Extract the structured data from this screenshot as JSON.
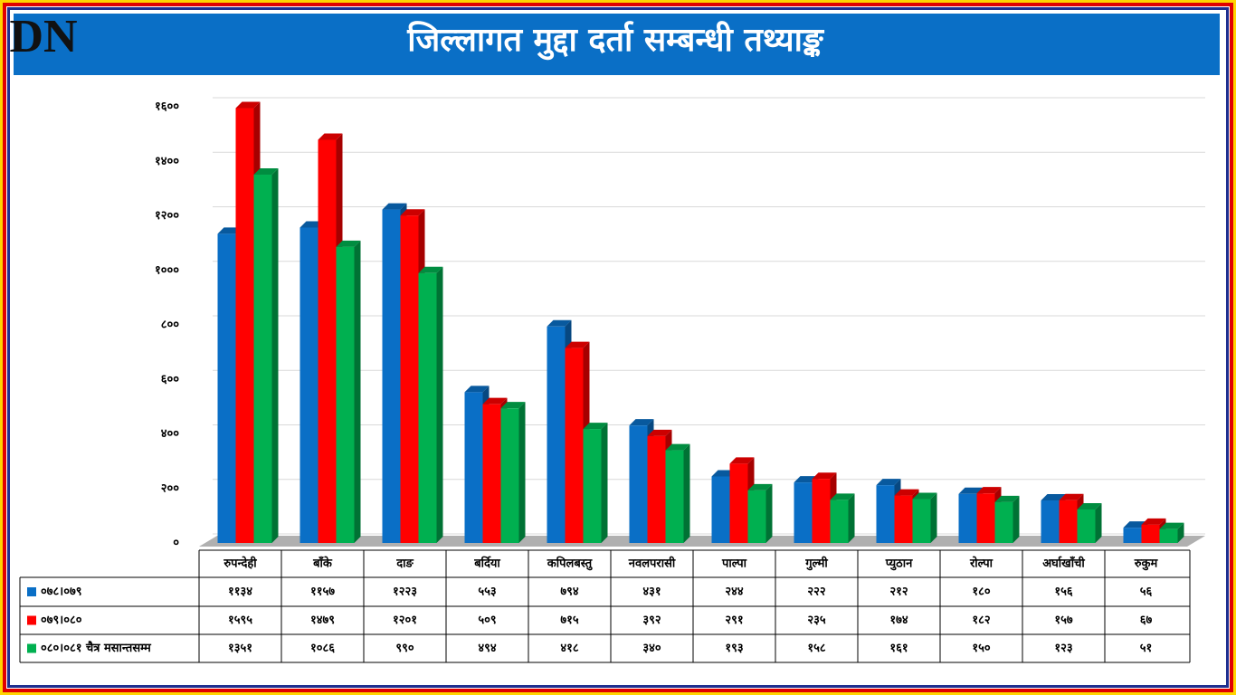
{
  "logo": "DN",
  "chart_data": {
    "type": "bar3d",
    "title": "जिल्लागत मुद्दा दर्ता सम्बन्धी तथ्याङ्क",
    "categories": [
      "रुपन्देही",
      "बाँके",
      "दाङ",
      "बर्दिया",
      "कपिलबस्तु",
      "नवलपरासी",
      "पाल्पा",
      "गुल्मी",
      "प्युठान",
      "रोल्पा",
      "अर्घाखाँची",
      "रुकुम"
    ],
    "series": [
      {
        "name": "०७८।०७९",
        "color": "#0a6fc6",
        "values": [
          1134,
          1157,
          1223,
          553,
          794,
          431,
          244,
          222,
          212,
          180,
          156,
          56
        ],
        "value_labels": [
          "११३४",
          "११५७",
          "१२२३",
          "५५३",
          "७९४",
          "४३१",
          "२४४",
          "२२२",
          "२१२",
          "१८०",
          "१५६",
          "५६"
        ]
      },
      {
        "name": "०७९।०८०",
        "color": "#ff0000",
        "values": [
          1595,
          1479,
          1201,
          509,
          715,
          392,
          291,
          235,
          174,
          182,
          157,
          67
        ],
        "value_labels": [
          "१५९५",
          "१४७९",
          "१२०१",
          "५०९",
          "७१५",
          "३९२",
          "२९१",
          "२३५",
          "१७४",
          "१८२",
          "१५७",
          "६७"
        ]
      },
      {
        "name": "०८०।०८१ चैत्र मसान्तसम्म",
        "color": "#00b050",
        "values": [
          1351,
          1086,
          990,
          494,
          418,
          340,
          193,
          158,
          161,
          150,
          123,
          51
        ],
        "value_labels": [
          "१३५१",
          "१०८६",
          "९९०",
          "४९४",
          "४१८",
          "३४०",
          "१९३",
          "१५८",
          "१६१",
          "१५०",
          "१२३",
          "५१"
        ]
      }
    ],
    "ylim": [
      0,
      1600
    ],
    "yticks": [
      {
        "value": 0,
        "label": "०"
      },
      {
        "value": 200,
        "label": "२००"
      },
      {
        "value": 400,
        "label": "४००"
      },
      {
        "value": 600,
        "label": "६००"
      },
      {
        "value": 800,
        "label": "८००"
      },
      {
        "value": 1000,
        "label": "१०००"
      },
      {
        "value": 1200,
        "label": "१२००"
      },
      {
        "value": 1400,
        "label": "१४००"
      },
      {
        "value": 1600,
        "label": "१६००"
      }
    ],
    "grid": true
  }
}
